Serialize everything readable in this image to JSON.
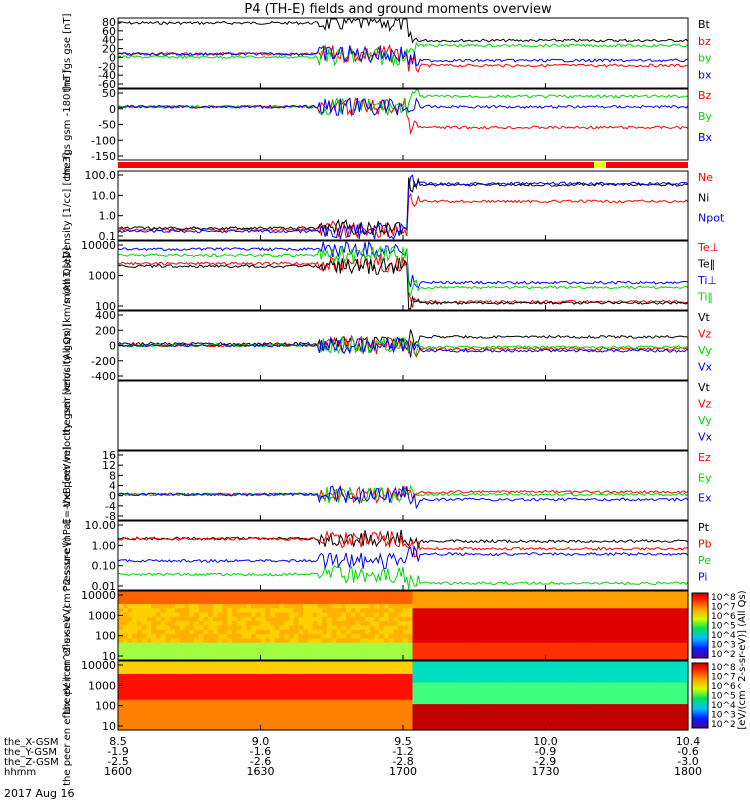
{
  "title": "P4 (TH-E) fields and ground moments overview",
  "date_label": "2017 Aug 16",
  "time_axis": {
    "row_labels": [
      "the_X-GSM",
      "the_Y-GSM",
      "the_Z-GSM",
      "hhmm"
    ],
    "columns": [
      {
        "hhmm": "1600",
        "x": "8.5",
        "y": "-1.9",
        "z": "-2.5"
      },
      {
        "hhmm": "1630",
        "x": "9.0",
        "y": "-1.6",
        "z": "-2.6"
      },
      {
        "hhmm": "1700",
        "x": "9.5",
        "y": "-1.2",
        "z": "-2.8"
      },
      {
        "hhmm": "1730",
        "x": "10.0",
        "y": "-0.9",
        "z": "-2.9"
      },
      {
        "hhmm": "1800",
        "x": "10.4",
        "y": "-0.6",
        "z": "-3.0"
      }
    ]
  },
  "colors": {
    "black": "#000000",
    "red": "#ff0000",
    "green": "#00d800",
    "blue": "#0000ff",
    "yellow": "#ffff00"
  },
  "colorbar": {
    "label": "[eV/(cm^2-s-sr-eV)] (All Qs)",
    "ticks": [
      "10^8",
      "10^7",
      "10^6",
      "10^5",
      "10^4",
      "10^3",
      "10^2"
    ]
  },
  "chart_data": [
    {
      "type": "line",
      "ylabel": "the fgs gse [nT]",
      "ticks": [
        "80",
        "60",
        "40",
        "20",
        "0",
        "-20",
        "-40",
        "-60"
      ],
      "ylim": [
        -60,
        80
      ],
      "series": [
        {
          "name": "Bt",
          "color": "black",
          "values_before_1701": 70,
          "values_after_1701": 35
        },
        {
          "name": "bz",
          "color": "red",
          "values_before_1701": 8,
          "values_after_1701": -15
        },
        {
          "name": "by",
          "color": "green",
          "values_before_1701": 2,
          "values_after_1701": 25
        },
        {
          "name": "bx",
          "color": "blue",
          "values_before_1701": 8,
          "values_after_1701": -5
        }
      ]
    },
    {
      "type": "line",
      "ylabel": "the fgs gsm -180 [nT]",
      "ticks": [
        "50",
        "0",
        "-50",
        "-100",
        "-150"
      ],
      "ylim": [
        -180,
        60
      ],
      "series": [
        {
          "name": "Bz",
          "color": "red",
          "values_before_1701": 0,
          "values_after_1701": -70
        },
        {
          "name": "By",
          "color": "green",
          "values_before_1701": 0,
          "values_after_1701": 35
        },
        {
          "name": "Bx",
          "color": "blue",
          "values_before_1701": 0,
          "values_after_1701": 0
        }
      ]
    },
    {
      "type": "line",
      "ylabel": "Density [1/cc] [cm-3]",
      "ticks": [
        "100.0",
        "10.0",
        "1.0",
        "0.1"
      ],
      "yscale": "log",
      "series": [
        {
          "name": "Ne",
          "color": "red",
          "values_before_1701": 0.3,
          "values_after_1701": 6
        },
        {
          "name": "Ni",
          "color": "black",
          "values_before_1701": 0.35,
          "values_after_1701": 35
        },
        {
          "name": "Npot",
          "color": "blue",
          "values_before_1701": 0.25,
          "values_after_1701": 40
        }
      ]
    },
    {
      "type": "line",
      "ylabel": "mom3 [eV]",
      "ticks": [
        "10000",
        "1000",
        "100"
      ],
      "yscale": "log",
      "series": [
        {
          "name": "Te⊥",
          "color": "red",
          "values_before_1701": 1500,
          "values_after_1701": 60
        },
        {
          "name": "Te‖",
          "color": "black",
          "values_before_1701": 1200,
          "values_after_1701": 55
        },
        {
          "name": "Ti⊥",
          "color": "blue",
          "values_before_1701": 5000,
          "values_after_1701": 300
        },
        {
          "name": "Ti‖",
          "color": "green",
          "values_before_1701": 3000,
          "values_after_1701": 200
        }
      ]
    },
    {
      "type": "line",
      "ylabel": "the peir velocity gsm [km/s (All Qs)]",
      "ticks": [
        "400",
        "200",
        "0",
        "-200",
        "-400"
      ],
      "ylim": [
        -400,
        400
      ],
      "series": [
        {
          "name": "Vt",
          "color": "black",
          "values_before_1701": 20,
          "values_after_1701": 100
        },
        {
          "name": "Vz",
          "color": "red",
          "values_before_1701": 0,
          "values_after_1701": -40
        },
        {
          "name": "Vy",
          "color": "green",
          "values_before_1701": 0,
          "values_after_1701": -20
        },
        {
          "name": "Vx",
          "color": "blue",
          "values_before_1701": 0,
          "values_after_1701": -60
        }
      ]
    },
    {
      "type": "line",
      "ylabel": "the peer velocity gsm [km/s (All Qs)]",
      "ticks": [],
      "series": [
        {
          "name": "Vt",
          "color": "black"
        },
        {
          "name": "Vz",
          "color": "red"
        },
        {
          "name": "Vy",
          "color": "green"
        },
        {
          "name": "Vx",
          "color": "blue"
        }
      ]
    },
    {
      "type": "line",
      "ylabel": "E=-VxB [mV/m]",
      "ticks": [
        "16",
        "12",
        "8",
        "4",
        "0",
        "-4",
        "-8"
      ],
      "ylim": [
        -10,
        17
      ],
      "series": [
        {
          "name": "Ez",
          "color": "red",
          "values_before_1701": 0,
          "values_after_1701": 1
        },
        {
          "name": "Ey",
          "color": "green",
          "values_before_1701": 0,
          "values_after_1701": 0
        },
        {
          "name": "Ex",
          "color": "blue",
          "values_before_1701": 0,
          "values_after_1701": -2
        }
      ]
    },
    {
      "type": "line",
      "ylabel": "Pressure [nPa]",
      "ticks": [
        "10.00",
        "1.00",
        "0.10",
        "0.01"
      ],
      "yscale": "log",
      "series": [
        {
          "name": "Pt",
          "color": "black",
          "values_before_1701": 2.0,
          "values_after_1701": 1.5
        },
        {
          "name": "Pb",
          "color": "red",
          "values_before_1701": 1.9,
          "values_after_1701": 0.7
        },
        {
          "name": "Pe",
          "color": "green",
          "values_before_1701": 0.05,
          "values_after_1701": 0.02
        },
        {
          "name": "Pi",
          "color": "blue",
          "values_before_1701": 0.2,
          "values_after_1701": 0.4
        }
      ]
    },
    {
      "type": "heatmap",
      "ylabel": "the peir en eflux eV (cm^2-s-sr-eV)",
      "ticks": [
        "10000",
        "1000",
        "100",
        "10"
      ],
      "yscale": "log"
    },
    {
      "type": "heatmap",
      "ylabel": "the peer en eflux eV (cm^2-s-sr-eV)",
      "ticks": [
        "10000",
        "1000",
        "100",
        "10"
      ],
      "yscale": "log"
    }
  ]
}
